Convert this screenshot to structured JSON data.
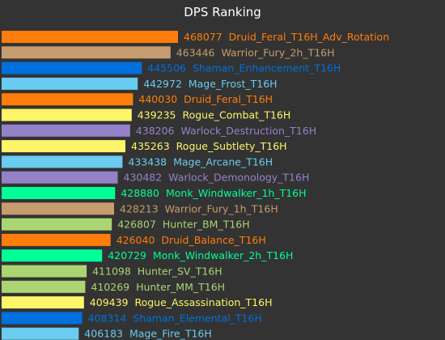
{
  "chart_data": {
    "type": "bar",
    "orientation": "horizontal",
    "title": "DPS Ranking",
    "xlabel": "",
    "ylabel": "",
    "xlim": [
      0,
      468077
    ],
    "grid": false,
    "legend": "none",
    "bars": [
      {
        "value": 468077,
        "label": "Druid_Feral_T16H_Adv_Rotation",
        "color": "#ff7d0a"
      },
      {
        "value": 463446,
        "label": "Warrior_Fury_2h_T16H",
        "color": "#c79c6e"
      },
      {
        "value": 445506,
        "label": "Shaman_Enhancement_T16H",
        "color": "#0070de"
      },
      {
        "value": 442972,
        "label": "Mage_Frost_T16H",
        "color": "#69ccf0"
      },
      {
        "value": 440030,
        "label": "Druid_Feral_T16H",
        "color": "#ff7d0a"
      },
      {
        "value": 439235,
        "label": "Rogue_Combat_T16H",
        "color": "#fff569"
      },
      {
        "value": 438206,
        "label": "Warlock_Destruction_T16H",
        "color": "#9482c9"
      },
      {
        "value": 435263,
        "label": "Rogue_Subtlety_T16H",
        "color": "#fff569"
      },
      {
        "value": 433438,
        "label": "Mage_Arcane_T16H",
        "color": "#69ccf0"
      },
      {
        "value": 430482,
        "label": "Warlock_Demonology_T16H",
        "color": "#9482c9"
      },
      {
        "value": 428880,
        "label": "Monk_Windwalker_1h_T16H",
        "color": "#00ff96"
      },
      {
        "value": 428213,
        "label": "Warrior_Fury_1h_T16H",
        "color": "#c79c6e"
      },
      {
        "value": 426807,
        "label": "Hunter_BM_T16H",
        "color": "#abd473"
      },
      {
        "value": 426040,
        "label": "Druid_Balance_T16H",
        "color": "#ff7d0a"
      },
      {
        "value": 420729,
        "label": "Monk_Windwalker_2h_T16H",
        "color": "#00ff96"
      },
      {
        "value": 411098,
        "label": "Hunter_SV_T16H",
        "color": "#abd473"
      },
      {
        "value": 410269,
        "label": "Hunter_MM_T16H",
        "color": "#abd473"
      },
      {
        "value": 409439,
        "label": "Rogue_Assassination_T16H",
        "color": "#fff569"
      },
      {
        "value": 408314,
        "label": "Shaman_Elemental_T16H",
        "color": "#0070de"
      },
      {
        "value": 406183,
        "label": "Mage_Fire_T16H",
        "color": "#69ccf0"
      }
    ]
  },
  "colors": {
    "background": "#333333",
    "title": "#ffffff"
  }
}
